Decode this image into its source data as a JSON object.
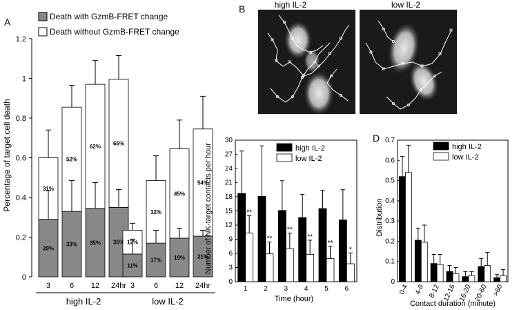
{
  "chart_data": [
    {
      "panel": "A",
      "type": "bar",
      "stacked": true,
      "ylabel": "Percentage of target cell death",
      "ylim": [
        0,
        1.2
      ],
      "yticks": [
        "0",
        "0.2",
        "0.4",
        "0.6",
        "0.8",
        "1",
        "1.2"
      ],
      "legend": [
        {
          "name": "Death with GzmB-FRET change",
          "color": "#888888"
        },
        {
          "name": "Death without GzmB-FRET change",
          "color": "#ffffff"
        }
      ],
      "groups": [
        {
          "label": "high IL-2",
          "categories": [
            "3",
            "6",
            "12",
            "24hr"
          ],
          "with_change": [
            0.29,
            0.33,
            0.345,
            0.35
          ],
          "totals": [
            0.6,
            0.855,
            0.97,
            0.995
          ],
          "error_with": [
            0.145,
            0.155,
            0.13,
            0.09
          ],
          "error_total": [
            0.14,
            0.11,
            0.12,
            0.12
          ],
          "pct_with": [
            "29%",
            "33%",
            "35%",
            "35%"
          ],
          "pct_without": [
            "31%",
            "52%",
            "62%",
            "65%"
          ]
        },
        {
          "label": "low IL-2",
          "categories": [
            "3",
            "6",
            "12",
            "24hr"
          ],
          "with_change": [
            0.115,
            0.17,
            0.195,
            0.205
          ],
          "totals": [
            0.235,
            0.485,
            0.645,
            0.745
          ],
          "error_with": [
            0.075,
            0.065,
            0.05,
            0.03
          ],
          "error_total": [
            0.035,
            0.125,
            0.145,
            0.165
          ],
          "pct_with": [
            "11%",
            "17%",
            "19%",
            "21%"
          ],
          "pct_without": [
            "12%",
            "32%",
            "45%",
            "54%"
          ]
        }
      ]
    },
    {
      "panel": "C",
      "type": "bar",
      "xlabel": "Time (hour)",
      "ylabel": "Number of NK-target contacts per hour",
      "ylim": [
        0,
        30
      ],
      "yticks": [
        "0",
        "3",
        "6",
        "9",
        "12",
        "15",
        "18",
        "21",
        "24",
        "27",
        "30"
      ],
      "categories": [
        "1",
        "2",
        "3",
        "4",
        "5",
        "6"
      ],
      "series": [
        {
          "name": "high IL-2",
          "color": "#000000",
          "values": [
            18.7,
            18.1,
            15.1,
            13.6,
            15.5,
            13.1
          ],
          "errors": [
            9.0,
            10.7,
            6.3,
            4.9,
            3.9,
            6.4
          ]
        },
        {
          "name": "low IL-2",
          "color": "#ffffff",
          "values": [
            10.3,
            5.9,
            7.0,
            5.8,
            4.9,
            3.8
          ],
          "errors": [
            3.7,
            2.5,
            3.3,
            3.0,
            2.6,
            2.3
          ]
        }
      ],
      "significance": [
        "**",
        "**",
        "**",
        "**",
        "**",
        "*"
      ]
    },
    {
      "panel": "D",
      "type": "bar",
      "xlabel": "Contact duration (minute)",
      "ylabel": "Distribution",
      "ylim": [
        0,
        0.7
      ],
      "yticks": [
        "0",
        "0.1",
        "0.2",
        "0.3",
        "0.4",
        "0.5",
        "0.6",
        "0.7"
      ],
      "categories": [
        "0-4",
        "4-8",
        "8-12",
        "12-16",
        "16-20",
        "20-60",
        ">60"
      ],
      "series": [
        {
          "name": "high IL-2",
          "color": "#000000",
          "values": [
            0.52,
            0.205,
            0.09,
            0.05,
            0.025,
            0.075,
            0.02
          ],
          "errors": [
            0.1,
            0.06,
            0.045,
            0.03,
            0.025,
            0.04,
            0.015
          ]
        },
        {
          "name": "low IL-2",
          "color": "#ffffff",
          "values": [
            0.54,
            0.195,
            0.085,
            0.04,
            0.03,
            0.08,
            0.03
          ],
          "errors": [
            0.135,
            0.085,
            0.05,
            0.03,
            0.02,
            0.065,
            0.03
          ]
        }
      ]
    }
  ],
  "panels": {
    "A": "A",
    "B": "B",
    "C": "C",
    "D": "D"
  },
  "micrographs": {
    "left_label": "high IL-2",
    "right_label": "low IL-2"
  }
}
